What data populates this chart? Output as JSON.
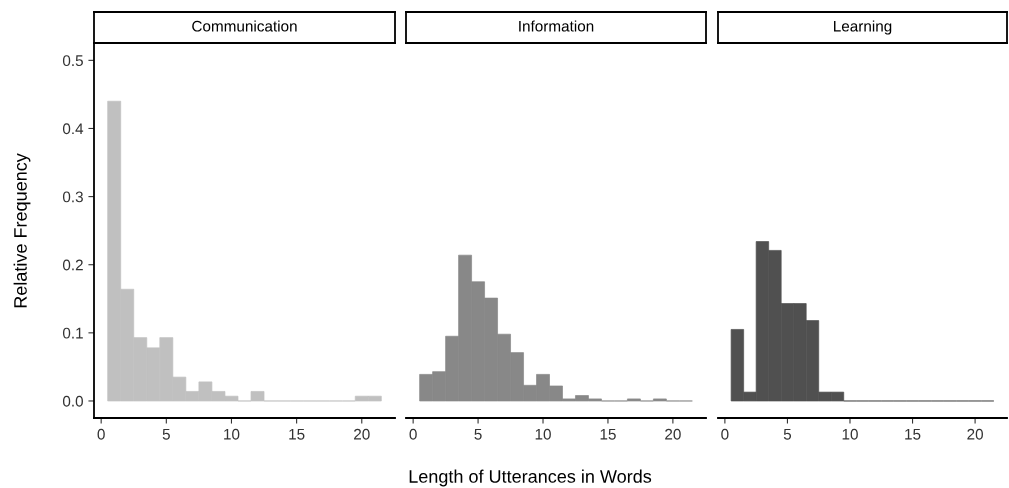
{
  "chart_data": [
    {
      "type": "histogram",
      "title": "Communication",
      "ylabel": "Relative Frequency",
      "color": "#c0c0c0",
      "bins": [
        0.5,
        1.5,
        2.5,
        3.5,
        4.5,
        5.5,
        6.5,
        7.5,
        8.5,
        9.5,
        10.5,
        11.5,
        12.5,
        13.5,
        14.5,
        15.5,
        16.5,
        17.5,
        18.5,
        19.5,
        20.5,
        21.5
      ],
      "values": [
        0.44,
        0.164,
        0.093,
        0.078,
        0.093,
        0.035,
        0.014,
        0.028,
        0.014,
        0.007,
        0,
        0.014,
        0,
        0,
        0,
        0,
        0,
        0,
        0,
        0.007,
        0.007
      ],
      "xlim": [
        -0.55,
        22.55
      ],
      "xticks": [
        0,
        5,
        10,
        15,
        20
      ],
      "ylim": [
        -0.025,
        0.524
      ],
      "yticks": [
        {
          "value": 0,
          "label": "0.0"
        },
        0.1,
        0.2,
        0.3,
        0.4,
        0.5
      ],
      "grid": false
    },
    {
      "type": "histogram",
      "title": "Information",
      "xlabel": "Length of Utterances in Words",
      "color": "#888888",
      "bins": [
        0.5,
        1.5,
        2.5,
        3.5,
        4.5,
        5.5,
        6.5,
        7.5,
        8.5,
        9.5,
        10.5,
        11.5,
        12.5,
        13.5,
        14.5,
        15.5,
        16.5,
        17.5,
        18.5,
        19.5,
        20.5,
        21.5
      ],
      "values": [
        0.039,
        0.043,
        0.095,
        0.214,
        0.175,
        0.151,
        0.098,
        0.071,
        0.023,
        0.039,
        0.022,
        0.003,
        0.008,
        0.003,
        0,
        0,
        0.003,
        0,
        0.003,
        0,
        0
      ],
      "xlim": [
        -0.55,
        22.55
      ],
      "xticks": [
        0,
        5,
        10,
        15,
        20
      ],
      "ylim": [
        -0.025,
        0.524
      ],
      "yticks": [
        0.0,
        0.1,
        0.2,
        0.3,
        0.4,
        0.5
      ],
      "tick_labels": "x",
      "grid": false
    },
    {
      "type": "histogram",
      "title": "Learning",
      "color": "#505050",
      "bins": [
        0.5,
        1.5,
        2.5,
        3.5,
        4.5,
        5.5,
        6.5,
        7.5,
        8.5,
        9.5,
        10.5,
        11.5,
        12.5,
        13.5,
        14.5,
        15.5,
        16.5,
        17.5,
        18.5,
        19.5,
        20.5,
        21.5
      ],
      "values": [
        0.105,
        0.013,
        0.234,
        0.221,
        0.143,
        0.143,
        0.118,
        0.013,
        0.013,
        0,
        0,
        0,
        0,
        0,
        0,
        0,
        0,
        0,
        0,
        0,
        0
      ],
      "xlim": [
        -0.55,
        22.55
      ],
      "xticks": [
        0,
        5,
        10,
        15,
        20
      ],
      "ylim": [
        -0.025,
        0.524
      ],
      "yticks": [
        0.0,
        0.1,
        0.2,
        0.3,
        0.4,
        0.5
      ],
      "tick_labels": "x",
      "grid": false
    }
  ]
}
